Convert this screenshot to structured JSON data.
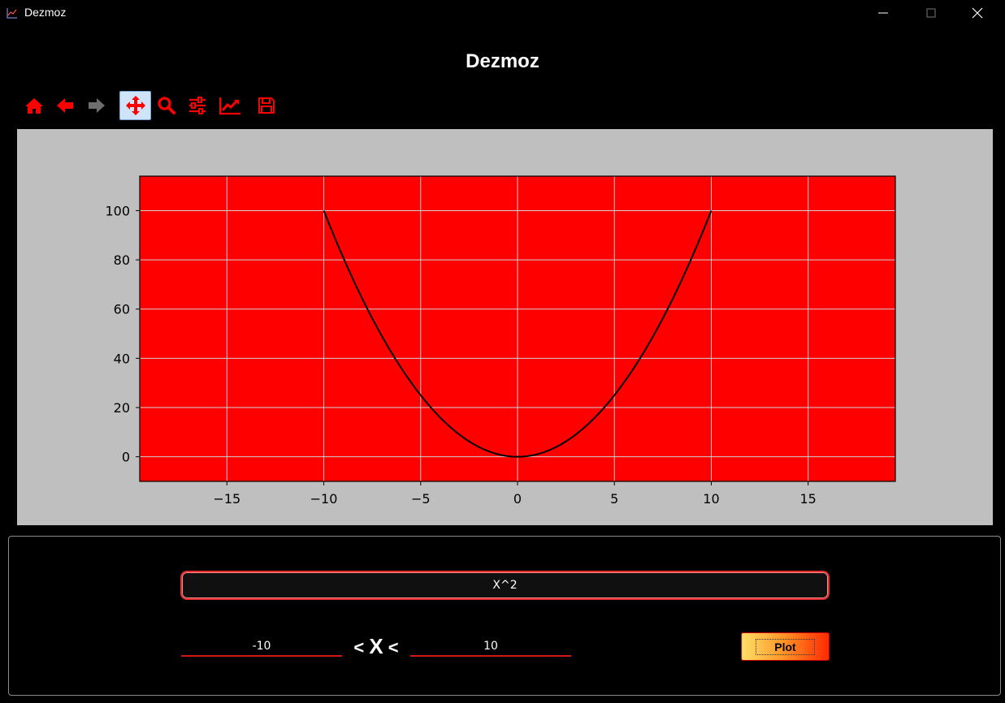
{
  "window": {
    "title": "Dezmoz",
    "icon": "chart-line-icon",
    "controls": [
      "minimize-icon",
      "maximize-icon",
      "close-icon"
    ]
  },
  "header": {
    "title": "Dezmoz"
  },
  "toolbar": {
    "color": "#ff0000",
    "items": [
      {
        "icon": "home-icon"
      },
      {
        "icon": "back-arrow-icon"
      },
      {
        "icon": "forward-arrow-icon",
        "disabled": true
      },
      {
        "icon": "pan-move-icon",
        "active": true
      },
      {
        "icon": "zoom-magnifier-icon"
      },
      {
        "icon": "configure-subplots-icon"
      },
      {
        "icon": "edit-axes-icon"
      },
      {
        "icon": "save-icon"
      }
    ]
  },
  "chart_data": {
    "type": "line",
    "title": "",
    "xlabel": "",
    "ylabel": "",
    "xlim": [
      -19.5,
      19.5
    ],
    "ylim": [
      -10,
      114
    ],
    "xticks": [
      -15,
      -10,
      -5,
      0,
      5,
      10,
      15
    ],
    "yticks": [
      0,
      20,
      40,
      60,
      80,
      100
    ],
    "xtick_labels": [
      "−15",
      "−10",
      "−5",
      "0",
      "5",
      "10",
      "15"
    ],
    "ytick_labels": [
      "0",
      "20",
      "40",
      "60",
      "80",
      "100"
    ],
    "grid": true,
    "axes_background": "#ff0000",
    "figure_background": "#bfbfbf",
    "line_color": "#000000",
    "series": [
      {
        "x": [
          -10,
          -9,
          -8,
          -7,
          -6,
          -5,
          -4,
          -3,
          -2,
          -1,
          0,
          1,
          2,
          3,
          4,
          5,
          6,
          7,
          8,
          9,
          10
        ],
        "y": [
          100,
          81,
          64,
          49,
          36,
          25,
          16,
          9,
          4,
          1,
          0,
          1,
          4,
          9,
          16,
          25,
          36,
          49,
          64,
          81,
          100
        ]
      }
    ]
  },
  "controls": {
    "expression": "X^2",
    "range_min": "-10",
    "range_max": "10",
    "range_lt1": "<",
    "range_var": "X",
    "range_lt2": "<",
    "plot_label": "Plot"
  }
}
